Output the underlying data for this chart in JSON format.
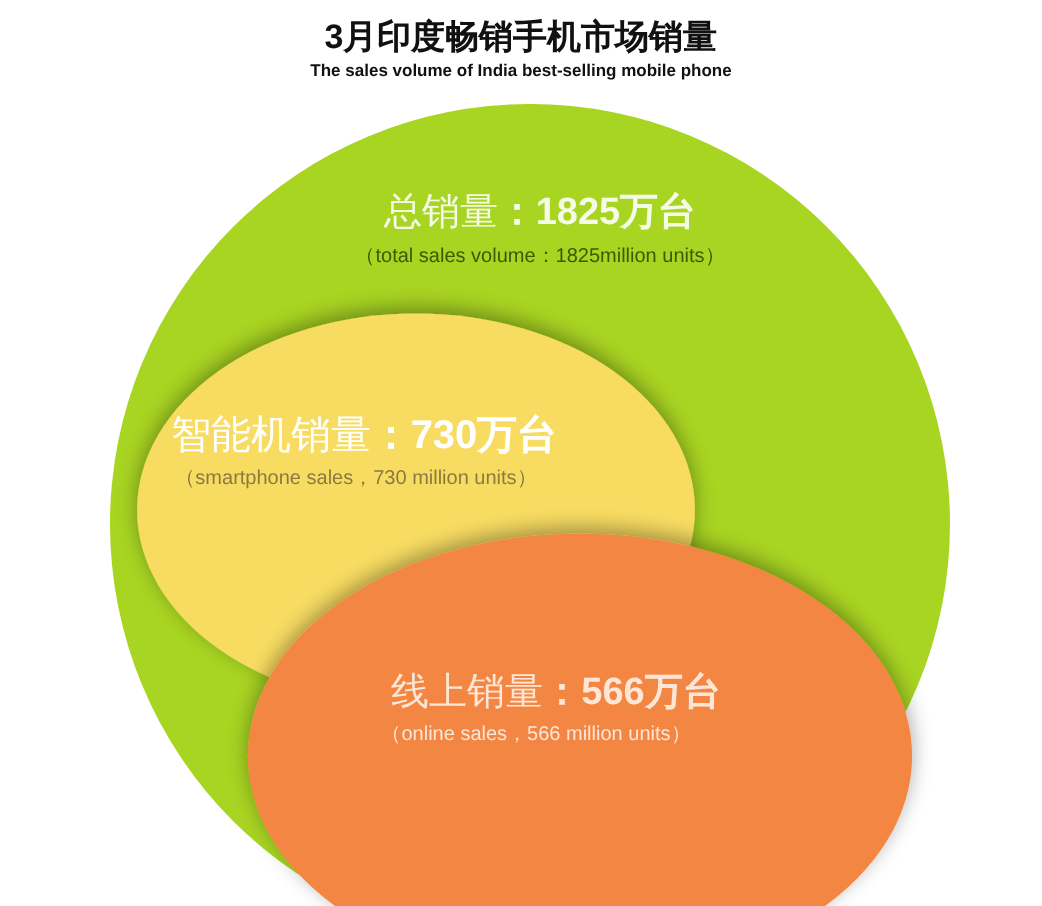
{
  "chart_data": {
    "type": "other",
    "title": "3月印度畅销手机市场销量",
    "subtitle": "The sales volume of India best-selling mobile phone",
    "categories": [
      "总销量",
      "智能机销量",
      "线上销量"
    ],
    "values": [
      1825,
      730,
      566
    ],
    "value_labels": [
      "：1825万台",
      "：730万台",
      "：566万台"
    ],
    "colors": [
      "#a8d422",
      "#f8dc62",
      "#f38643"
    ],
    "annotations": [
      "（total sales volume：1825million units）",
      "（smartphone sales，730 million units）",
      "（online sales，566 million units）"
    ]
  }
}
